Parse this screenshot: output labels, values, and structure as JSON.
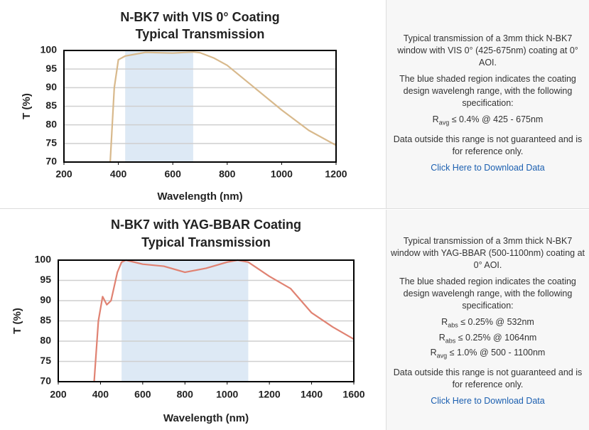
{
  "chart_data": [
    {
      "type": "line",
      "title": "N-BK7 with VIS 0° Coating",
      "subtitle": "Typical Transmission",
      "xlabel": "Wavelength (nm)",
      "ylabel": "T (%)",
      "x": [
        370,
        385,
        400,
        425,
        500,
        600,
        675,
        700,
        750,
        800,
        900,
        1000,
        1100,
        1200
      ],
      "values": [
        70,
        90,
        97.5,
        98.5,
        99.5,
        99.3,
        99.6,
        99.4,
        98,
        96,
        90,
        84,
        78.5,
        74.5
      ],
      "color": "#d8b98c",
      "shade": [
        425,
        675
      ],
      "shade_color": "#dde9f5",
      "xlim": [
        200,
        1200
      ],
      "ylim": [
        70,
        100
      ],
      "xticks": [
        200,
        400,
        600,
        800,
        1000,
        1200
      ],
      "yticks": [
        70,
        75,
        80,
        85,
        90,
        95,
        100
      ],
      "grid": true
    },
    {
      "type": "line",
      "title": "N-BK7 with YAG-BBAR Coating",
      "subtitle": "Typical Transmission",
      "xlabel": "Wavelength (nm)",
      "ylabel": "T (%)",
      "x": [
        370,
        390,
        410,
        430,
        450,
        480,
        500,
        520,
        600,
        700,
        800,
        900,
        1000,
        1050,
        1100,
        1200,
        1300,
        1400,
        1500,
        1600
      ],
      "values": [
        70,
        85,
        91,
        89,
        90,
        97,
        99.5,
        100,
        99,
        98.5,
        97,
        98,
        99.5,
        100,
        99.5,
        96,
        93,
        87,
        83.5,
        80.5
      ],
      "color": "#e08272",
      "shade": [
        500,
        1100
      ],
      "shade_color": "#dde9f5",
      "xlim": [
        200,
        1600
      ],
      "ylim": [
        70,
        100
      ],
      "xticks": [
        200,
        400,
        600,
        800,
        1000,
        1200,
        1400,
        1600
      ],
      "yticks": [
        70,
        75,
        80,
        85,
        90,
        95,
        100
      ],
      "grid": true
    }
  ],
  "panels": [
    {
      "paragraphs": [
        "Typical transmission of a 3mm thick N-BK7 window with VIS 0° (425-675nm) coating at 0° AOI.",
        "The blue shaded region indicates the coating design wavelengh range, with the following specification:"
      ],
      "specs": [
        {
          "symbol": "R",
          "sub": "avg",
          "text": "≤ 0.4% @ 425 - 675nm"
        }
      ],
      "note": "Data outside this range is not guaranteed and is for reference only.",
      "link": "Click Here to Download Data"
    },
    {
      "paragraphs": [
        "Typical transmission of a 3mm thick N-BK7 window with YAG-BBAR (500-1100nm) coating at 0° AOI.",
        "The blue shaded region indicates the coating design wavelengh range, with the following specification:"
      ],
      "specs": [
        {
          "symbol": "R",
          "sub": "abs",
          "text": "≤ 0.25% @ 532nm"
        },
        {
          "symbol": "R",
          "sub": "abs",
          "text": "≤ 0.25% @ 1064nm"
        },
        {
          "symbol": "R",
          "sub": "avg",
          "text": "≤ 1.0% @ 500 - 1100nm"
        }
      ],
      "note": "Data outside this range is not guaranteed and is for reference only.",
      "link": "Click Here to Download Data"
    }
  ]
}
